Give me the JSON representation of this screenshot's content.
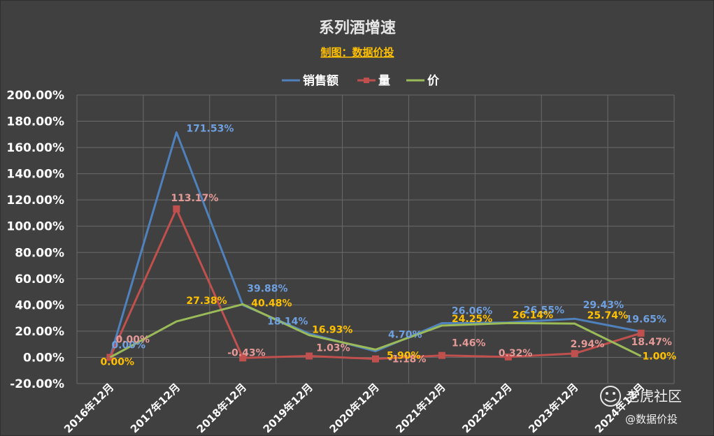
{
  "chart_data": {
    "type": "line",
    "title": "系列酒增速",
    "subtitle": "制图：数据价投",
    "categories": [
      "2016年12月",
      "2017年12月",
      "2018年12月",
      "2019年12月",
      "2020年12月",
      "2021年12月",
      "2022年12月",
      "2023年12月",
      "2024年12月"
    ],
    "ylim": [
      -0.2,
      2.0
    ],
    "yticks": [
      "-20.00%",
      "0.00%",
      "20.00%",
      "40.00%",
      "60.00%",
      "80.00%",
      "100.00%",
      "120.00%",
      "140.00%",
      "160.00%",
      "180.00%",
      "200.00%"
    ],
    "grid": true,
    "legend_position": "top",
    "series": [
      {
        "name": "销售额",
        "color": "#4f81bd",
        "marker": "none",
        "values": [
          0.0,
          1.7153,
          0.3988,
          0.1814,
          0.047,
          0.2606,
          0.2655,
          0.2943,
          0.1965
        ],
        "labels": [
          "0.00%",
          "171.53%",
          "39.88%",
          "18.14%",
          "4.70%",
          "26.06%",
          "26.55%",
          "29.43%",
          "19.65%"
        ],
        "label_color": "#6fa0e0"
      },
      {
        "name": "量",
        "color": "#c0504d",
        "marker": "square",
        "values": [
          0.0,
          1.1317,
          -0.0043,
          0.0103,
          -0.0118,
          0.0146,
          0.0032,
          0.0294,
          0.1847
        ],
        "labels": [
          "0.00%",
          "113.17%",
          "-0.43%",
          "1.03%",
          "-1.18%",
          "1.46%",
          "0.32%",
          "2.94%",
          "18.47%"
        ],
        "label_color": "#e69a97"
      },
      {
        "name": "价",
        "color": "#9bbb59",
        "marker": "none",
        "values": [
          0.0,
          0.2738,
          0.4048,
          0.1693,
          0.059,
          0.2425,
          0.2614,
          0.2574,
          0.01
        ],
        "labels": [
          "0.00%",
          "27.38%",
          "40.48%",
          "16.93%",
          "5.90%",
          "24.25%",
          "26.14%",
          "25.74%",
          "1.00%"
        ],
        "label_color": "#ffc000"
      }
    ]
  },
  "watermark": {
    "brand": "老虎社区",
    "handle": "@数据价投"
  }
}
